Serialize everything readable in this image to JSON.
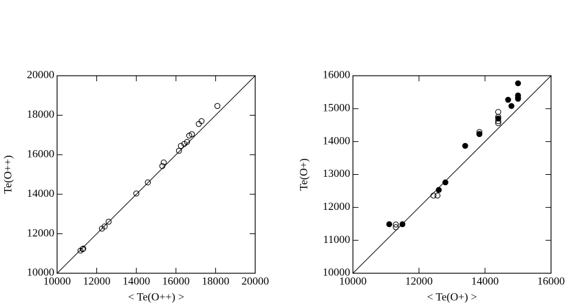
{
  "chart_data": [
    {
      "type": "scatter",
      "x_label": "< Te(O++) >",
      "y_label": "Te(O++)",
      "xlim": [
        10000,
        20000
      ],
      "ylim": [
        10000,
        20000
      ],
      "xticks": [
        10000,
        12000,
        14000,
        16000,
        18000,
        20000
      ],
      "yticks": [
        10000,
        12000,
        14000,
        16000,
        18000,
        20000
      ],
      "diagonal": true,
      "series": [
        {
          "color": "#000000",
          "marker": "open",
          "x": [
            11180,
            11320,
            11290,
            12260,
            12400,
            12600,
            14000,
            14580,
            15310,
            15380,
            16150,
            16250,
            16420,
            16560,
            16670,
            16800,
            17150,
            17290,
            18090
          ],
          "values": [
            11150,
            11250,
            11220,
            12260,
            12370,
            12610,
            14040,
            14600,
            15430,
            15610,
            16200,
            16450,
            16550,
            16650,
            16970,
            17040,
            17560,
            17700,
            18470
          ]
        }
      ]
    },
    {
      "type": "scatter",
      "x_label": "< Te(O+) >",
      "y_label": "Te(O+)",
      "xlim": [
        10000,
        16000
      ],
      "ylim": [
        10000,
        16000
      ],
      "xticks": [
        10000,
        12000,
        14000,
        16000
      ],
      "yticks": [
        10000,
        11000,
        12000,
        13000,
        14000,
        15000,
        16000
      ],
      "diagonal": true,
      "series": [
        {
          "color": "#000000",
          "marker": "open",
          "x": [
            11300,
            11300,
            12440,
            12560,
            13830,
            13830,
            14400,
            14400,
            14400,
            14400
          ],
          "values": [
            11480,
            11400,
            12360,
            12360,
            14290,
            14230,
            14900,
            14750,
            14620,
            14560
          ]
        },
        {
          "color": "#000000",
          "marker": "filled",
          "x": [
            11100,
            11500,
            12600,
            12800,
            13400,
            13830,
            14400,
            14700,
            14800,
            15000,
            15000,
            15000,
            15000
          ],
          "values": [
            11490,
            11490,
            12530,
            12760,
            13870,
            14230,
            14700,
            15270,
            15080,
            15770,
            15400,
            15330,
            15300
          ]
        }
      ]
    }
  ]
}
